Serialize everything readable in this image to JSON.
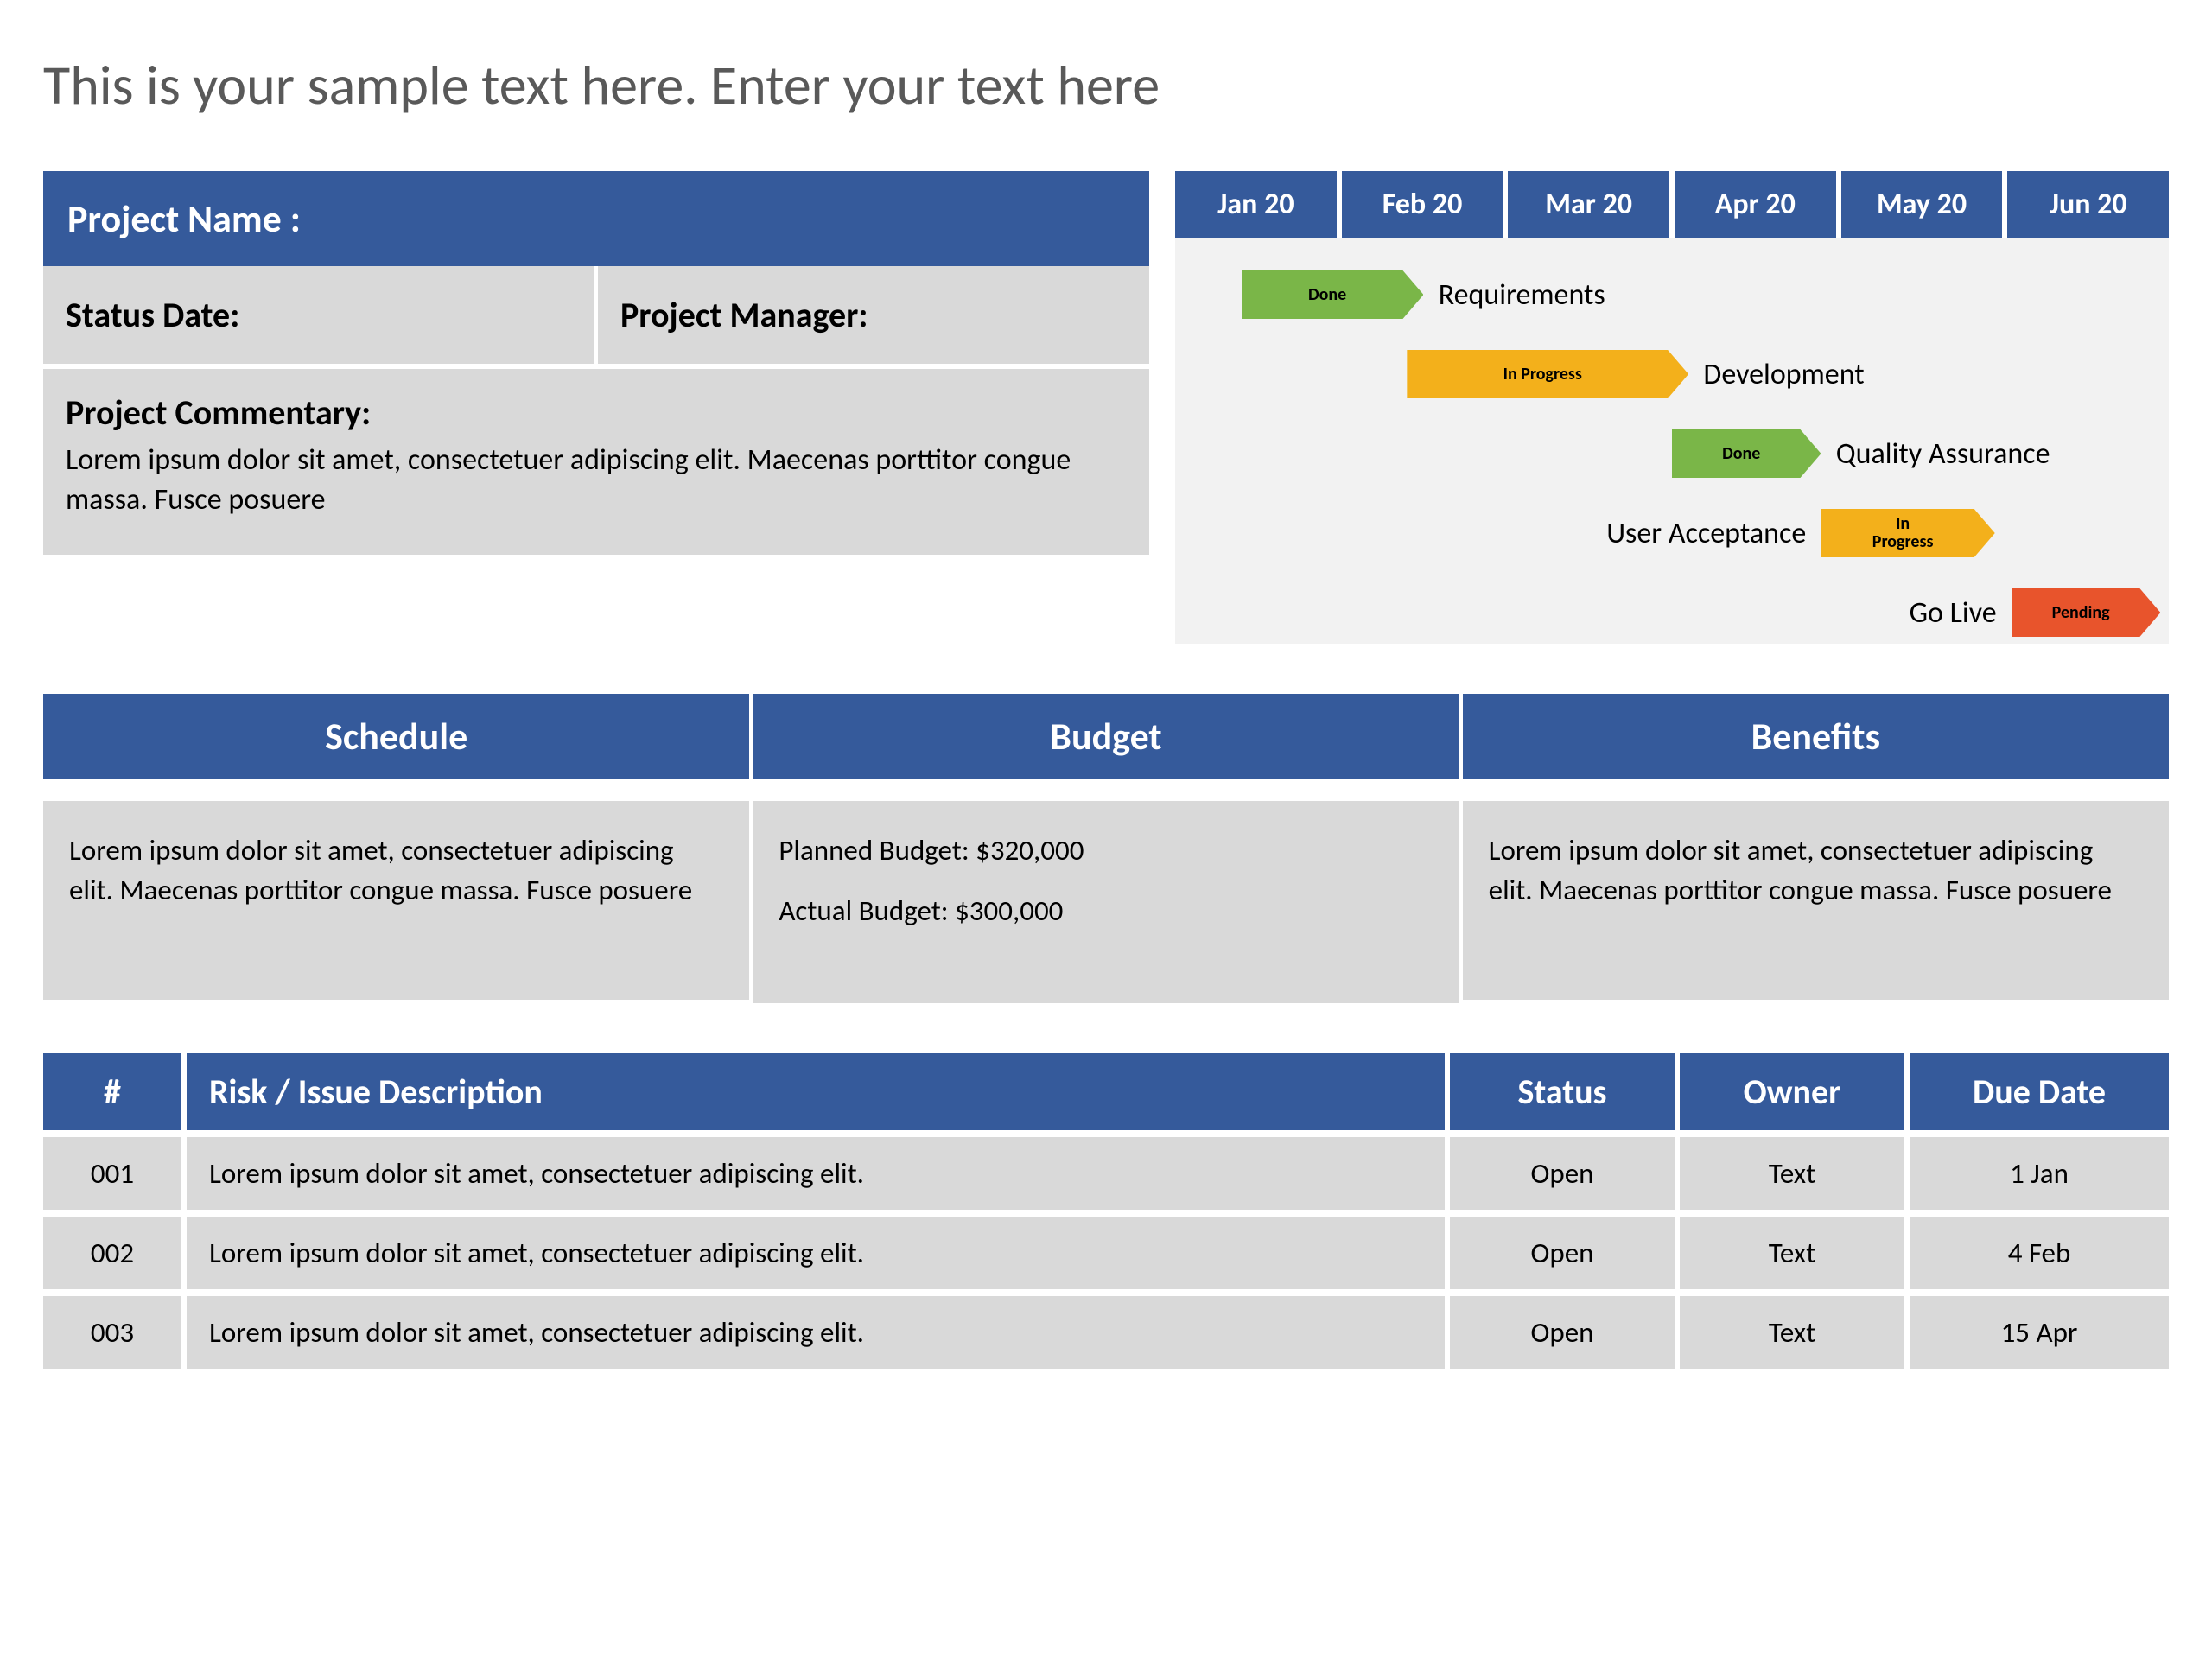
{
  "colors": {
    "header_bg": "#355a9b",
    "header_text": "#ffffff",
    "cell_bg": "#d9d9d9",
    "timeline_bg": "#f2f2f2",
    "title_color": "#595959",
    "status_done": "#7ab648",
    "status_progress": "#f3b01b",
    "status_pending": "#e8542c"
  },
  "title": "This is your sample text here. Enter your text here",
  "project": {
    "name_label": "Project Name :",
    "status_date_label": "Status Date:",
    "manager_label": "Project Manager:",
    "commentary_label": "Project Commentary:",
    "commentary_text": "Lorem ipsum dolor sit amet, consectetuer adipiscing elit. Maecenas porttitor congue massa. Fusce posuere"
  },
  "timeline": {
    "months": [
      "Jan 20",
      "Feb 20",
      "Mar 20",
      "Apr 20",
      "May 20",
      "Jun 20"
    ],
    "col_width_pct": 16.6667,
    "phases": [
      {
        "label": "Requirements",
        "status": "Done",
        "color": "#7ab648",
        "start_col": 0.4,
        "span_cols": 1.1,
        "label_side": "right"
      },
      {
        "label": "Development",
        "status": "In Progress",
        "color": "#f3b01b",
        "start_col": 1.4,
        "span_cols": 1.7,
        "label_side": "right"
      },
      {
        "label": "Quality Assurance",
        "status": "Done",
        "color": "#7ab648",
        "start_col": 3.0,
        "span_cols": 0.9,
        "label_side": "right"
      },
      {
        "label": "User Acceptance",
        "status": "In\nProgress",
        "color": "#f3b01b",
        "start_col": 3.9,
        "span_cols": 1.05,
        "label_side": "left"
      },
      {
        "label": "Go Live",
        "status": "Pending",
        "color": "#e8542c",
        "start_col": 5.05,
        "span_cols": 0.9,
        "label_side": "left"
      }
    ]
  },
  "sections": {
    "schedule": {
      "header": "Schedule",
      "body": "Lorem ipsum dolor sit amet, consectetuer adipiscing elit. Maecenas porttitor congue massa. Fusce posuere"
    },
    "budget": {
      "header": "Budget",
      "planned_label": "Planned Budget: $320,000",
      "actual_label": "Actual Budget: $300,000"
    },
    "benefits": {
      "header": "Benefits",
      "body": "Lorem ipsum dolor sit amet, consectetuer adipiscing elit. Maecenas porttitor congue massa. Fusce posuere"
    }
  },
  "risks": {
    "columns": {
      "num": "#",
      "desc": "Risk / Issue Description",
      "status": "Status",
      "owner": "Owner",
      "due": "Due Date"
    },
    "rows": [
      {
        "num": "001",
        "desc": "Lorem ipsum dolor sit amet, consectetuer adipiscing elit.",
        "status": "Open",
        "owner": "Text",
        "due": "1 Jan"
      },
      {
        "num": "002",
        "desc": "Lorem ipsum dolor sit amet, consectetuer adipiscing elit.",
        "status": "Open",
        "owner": "Text",
        "due": "4 Feb"
      },
      {
        "num": "003",
        "desc": "Lorem ipsum dolor sit amet, consectetuer adipiscing elit.",
        "status": "Open",
        "owner": "Text",
        "due": "15 Apr"
      }
    ]
  }
}
